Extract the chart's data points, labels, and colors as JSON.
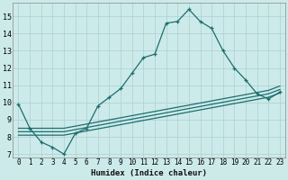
{
  "xlabel": "Humidex (Indice chaleur)",
  "background_color": "#cdeaea",
  "grid_color": "#afd4d4",
  "line_color": "#1c6e6e",
  "xlim": [
    -0.5,
    23.5
  ],
  "ylim": [
    6.8,
    15.8
  ],
  "xticks": [
    0,
    1,
    2,
    3,
    4,
    5,
    6,
    7,
    8,
    9,
    10,
    11,
    12,
    13,
    14,
    15,
    16,
    17,
    18,
    19,
    20,
    21,
    22,
    23
  ],
  "yticks": [
    7,
    8,
    9,
    10,
    11,
    12,
    13,
    14,
    15
  ],
  "line1_x": [
    0,
    1,
    2,
    3,
    4,
    5,
    6,
    7,
    8,
    9,
    10,
    11,
    12,
    13,
    14,
    15,
    16,
    17,
    18,
    19,
    20,
    21,
    22,
    23
  ],
  "line1_y": [
    9.9,
    8.5,
    7.7,
    7.4,
    7.0,
    8.2,
    8.5,
    9.8,
    10.3,
    10.8,
    11.7,
    12.6,
    12.8,
    14.6,
    14.7,
    15.4,
    14.7,
    14.3,
    13.0,
    12.0,
    11.3,
    10.5,
    10.2,
    10.6
  ],
  "line2_x": [
    0,
    2,
    4,
    22,
    23
  ],
  "line2_y": [
    8.1,
    8.1,
    8.1,
    10.3,
    10.55
  ],
  "line3_x": [
    0,
    2,
    4,
    22,
    23
  ],
  "line3_y": [
    8.3,
    8.3,
    8.3,
    10.5,
    10.75
  ],
  "line4_x": [
    0,
    2,
    4,
    22,
    23
  ],
  "line4_y": [
    8.5,
    8.5,
    8.5,
    10.7,
    10.95
  ]
}
